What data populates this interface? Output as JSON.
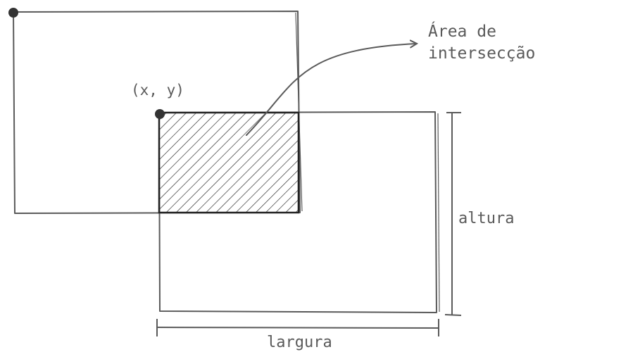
{
  "labels": {
    "point": "(x, y)",
    "area_line1": "Área de",
    "area_line2": "intersecção",
    "height": "altura",
    "width": "largura"
  },
  "colors": {
    "stroke": "#5a5a5a",
    "dark": "#222222",
    "point": "#333333",
    "background": "#ffffff"
  }
}
